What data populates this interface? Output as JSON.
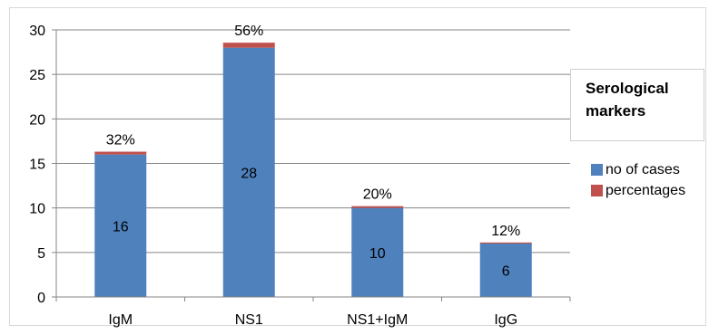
{
  "chart_data": {
    "type": "bar",
    "stacked": true,
    "categories": [
      "IgM",
      "NS1",
      "NS1+IgM",
      "IgG"
    ],
    "series": [
      {
        "name": "no of cases",
        "values": [
          16,
          28,
          10,
          6
        ],
        "color": "#4f81bd"
      },
      {
        "name": "percentages",
        "values": [
          0.32,
          0.56,
          0.2,
          0.12
        ],
        "color": "#c0504d"
      }
    ],
    "value_labels": [
      "16",
      "28",
      "10",
      "6"
    ],
    "top_labels": [
      "32%",
      "56%",
      "20%",
      "12%"
    ],
    "title": "Serological markers",
    "title_lines": [
      "Serological",
      "markers"
    ],
    "y_ticks": [
      "0",
      "5",
      "10",
      "15",
      "20",
      "25",
      "30"
    ],
    "ylim": [
      0,
      30
    ],
    "grid": true,
    "legend_position": "right"
  }
}
